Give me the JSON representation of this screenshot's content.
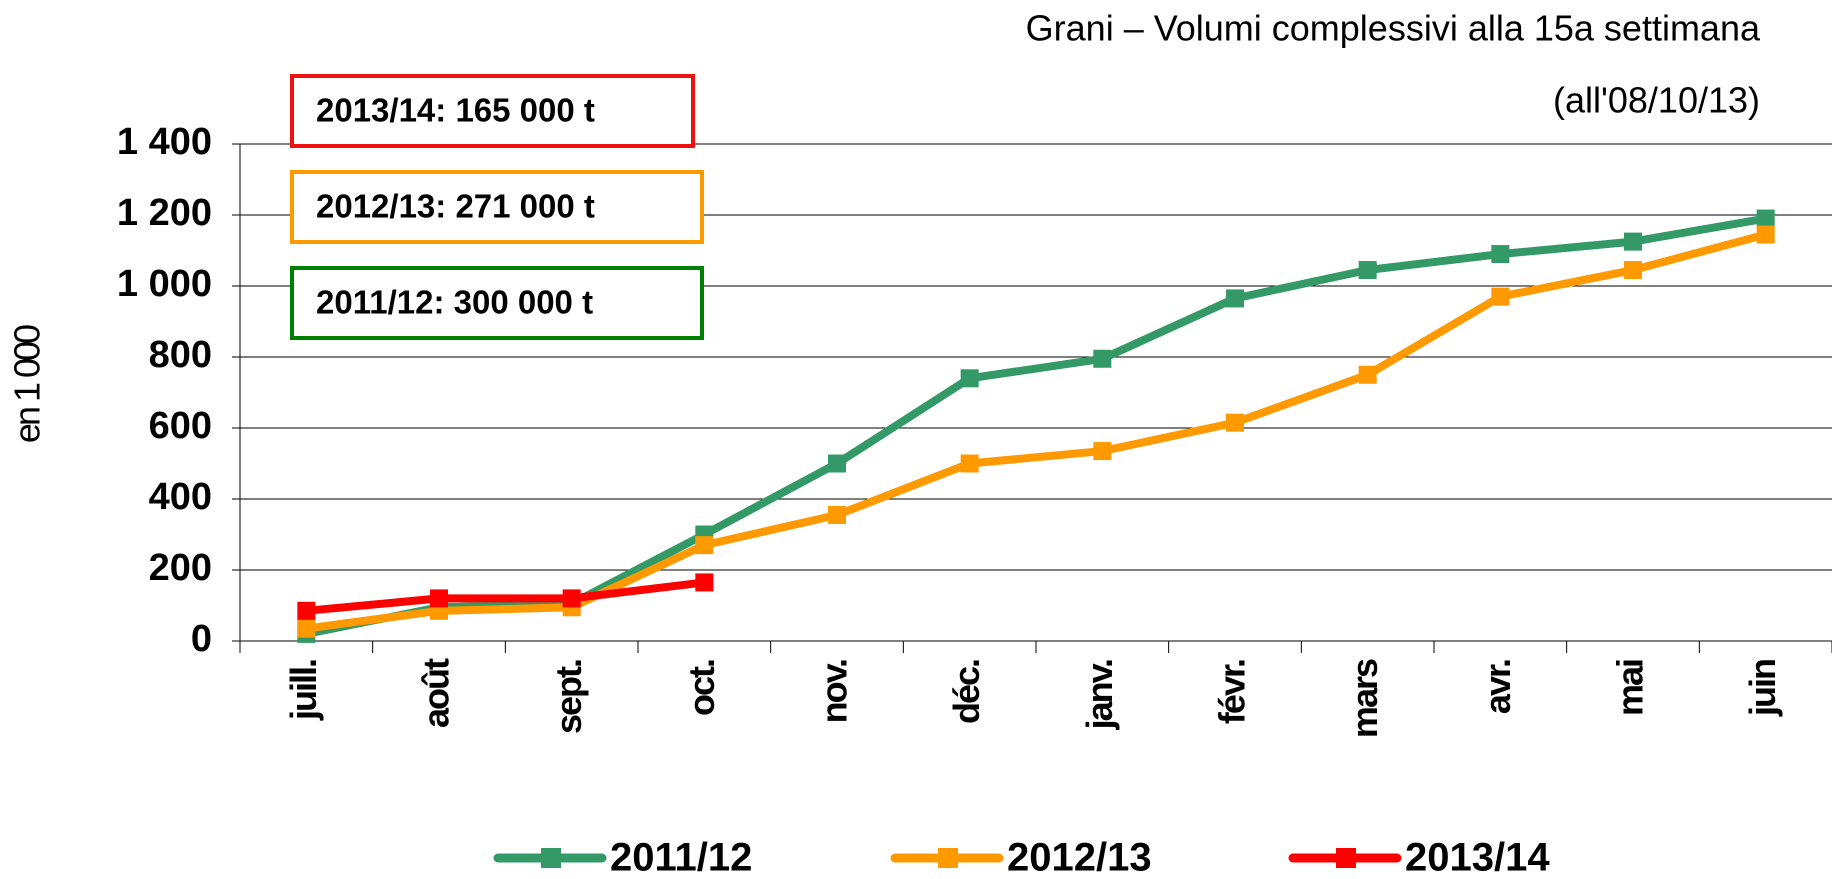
{
  "chart_data": {
    "type": "line",
    "title": "Grani – Volumi complessivi alla 15a settimana",
    "subtitle": "(all'08/10/13)",
    "y_label": "en 1 000",
    "categories": [
      "juill.",
      "août",
      "sept.",
      "oct.",
      "nov.",
      "déc.",
      "janv.",
      "févr.",
      "mars",
      "avr.",
      "mai",
      "juin"
    ],
    "series": [
      {
        "name": "2011/12",
        "color": "#339966",
        "values": [
          20,
          95,
          105,
          300,
          500,
          740,
          795,
          965,
          1045,
          1090,
          1125,
          1190
        ]
      },
      {
        "name": "2012/13",
        "color": "#ff9900",
        "values": [
          35,
          85,
          95,
          270,
          355,
          500,
          535,
          615,
          750,
          970,
          1045,
          1145
        ]
      },
      {
        "name": "2013/14",
        "color": "#ff0000",
        "values": [
          85,
          120,
          120,
          165,
          null,
          null,
          null,
          null,
          null,
          null,
          null,
          null
        ]
      }
    ],
    "annotations": [
      {
        "text": "2013/14: 165 000 t",
        "color": "#ee1111"
      },
      {
        "text": "2012/13: 271 000 t",
        "color": "#ff9900"
      },
      {
        "text": "2011/12: 300 000 t",
        "color": "#008000"
      }
    ],
    "ylim": [
      0,
      1400
    ],
    "yticks": [
      0,
      200,
      400,
      600,
      800,
      {
        "value": 1000,
        "label": "1 000"
      },
      {
        "value": 1200,
        "label": "1 200"
      },
      {
        "value": 1400,
        "label": "1 400"
      }
    ],
    "grid": true,
    "legend": "bottom"
  }
}
